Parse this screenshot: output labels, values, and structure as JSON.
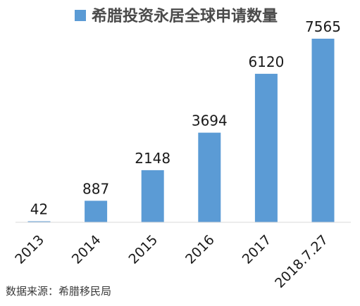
{
  "chart_data": {
    "type": "bar",
    "title": "希腊投资永居全球申请数量",
    "legend": [
      "希腊投资永居全球申请数量"
    ],
    "legend_position": "top",
    "categories": [
      "2013",
      "2014",
      "2015",
      "2016",
      "2017",
      "2018.7.27"
    ],
    "series": [
      {
        "name": "希腊投资永居全球申请数量",
        "values": [
          42,
          887,
          2148,
          3694,
          6120,
          7565
        ]
      }
    ],
    "data_labels": [
      "42",
      "887",
      "2148",
      "3694",
      "6120",
      "7565"
    ],
    "ylim": [
      0,
      8000
    ],
    "y_axis_visible": false,
    "grid": false,
    "xlabel": "",
    "ylabel": "",
    "bar_color": "#5b9bd5",
    "tick_label_rotation": "-45deg"
  },
  "footer": {
    "source": "数据来源：希腊移民局"
  }
}
